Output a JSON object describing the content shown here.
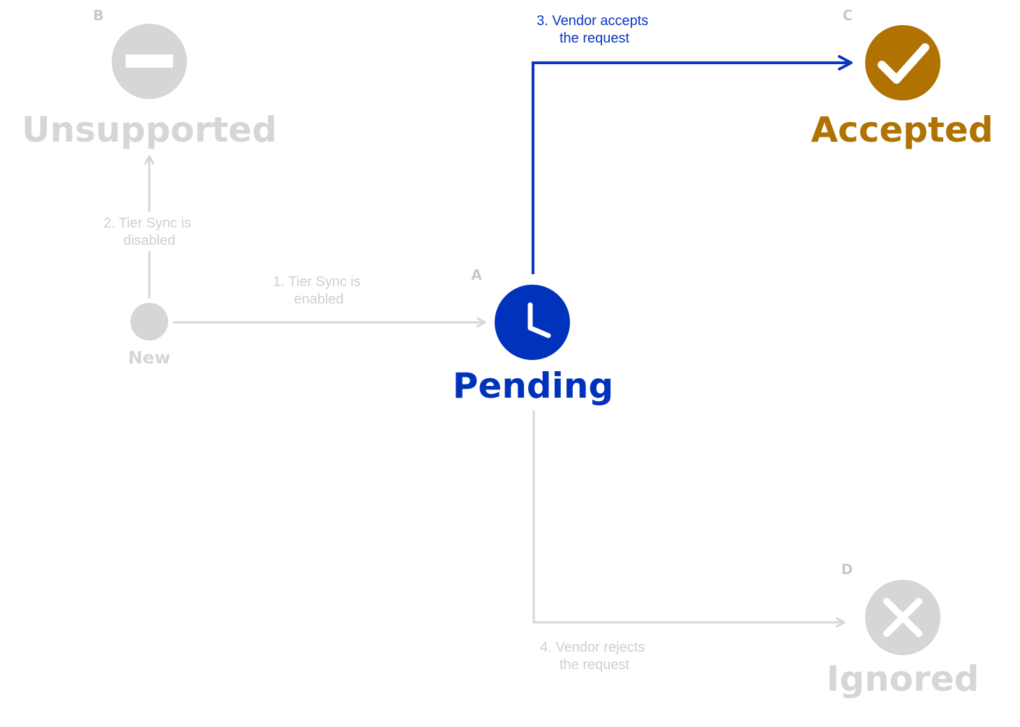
{
  "colors": {
    "muted": "#d6d6d6",
    "muted_text": "#cfcfcf",
    "muted_letter": "#c9c9c9",
    "pending": "#0033bb",
    "accepted": "#b07200",
    "arrow_active": "#0a34c2"
  },
  "states": {
    "new": {
      "label": "New"
    },
    "unsupported": {
      "letter": "B",
      "label": "Unsupported",
      "icon": "minus-icon"
    },
    "pending": {
      "letter": "A",
      "label": "Pending",
      "icon": "clock-icon"
    },
    "accepted": {
      "letter": "C",
      "label": "Accepted",
      "icon": "check-icon"
    },
    "ignored": {
      "letter": "D",
      "label": "Ignored",
      "icon": "x-icon"
    }
  },
  "transitions": {
    "t1": {
      "line1": "1. Tier Sync is",
      "line2": "enabled"
    },
    "t2": {
      "line1": "2. Tier Sync is",
      "line2": "disabled"
    },
    "t3": {
      "line1": "3. Vendor accepts",
      "line2": "the request"
    },
    "t4": {
      "line1": "4. Vendor rejects",
      "line2": "the request"
    }
  }
}
